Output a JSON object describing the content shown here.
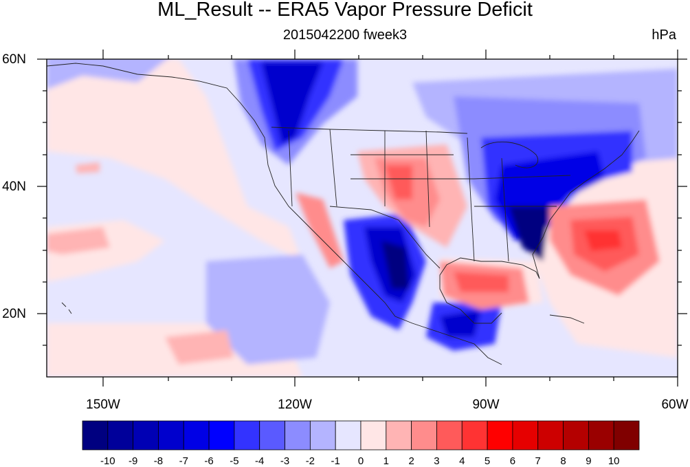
{
  "title": "ML_Result -- ERA5 Vapor Pressure Deficit",
  "subtitle": "2015042200 fweek3",
  "units": "hPa",
  "lat_labels": [
    "60N",
    "40N",
    "20N"
  ],
  "lon_labels": [
    "150W",
    "120W",
    "90W",
    "60W"
  ],
  "colorbar": {
    "labels": [
      "-10",
      "-9",
      "-8",
      "-7",
      "-6",
      "-5",
      "-4",
      "-3",
      "-2",
      "-1",
      "0",
      "1",
      "2",
      "3",
      "4",
      "5",
      "6",
      "7",
      "8",
      "9",
      "10"
    ],
    "colors": [
      "#000080",
      "#00009a",
      "#0000b4",
      "#0000cd",
      "#0000e6",
      "#0000ff",
      "#3333ff",
      "#5a5aff",
      "#8c8cff",
      "#b4b4ff",
      "#e6e6ff",
      "#ffe6e6",
      "#ffb4b4",
      "#ff8c8c",
      "#ff5a5a",
      "#ff3333",
      "#ff0000",
      "#e60000",
      "#cd0000",
      "#b40000",
      "#9a0000",
      "#800000"
    ]
  }
}
